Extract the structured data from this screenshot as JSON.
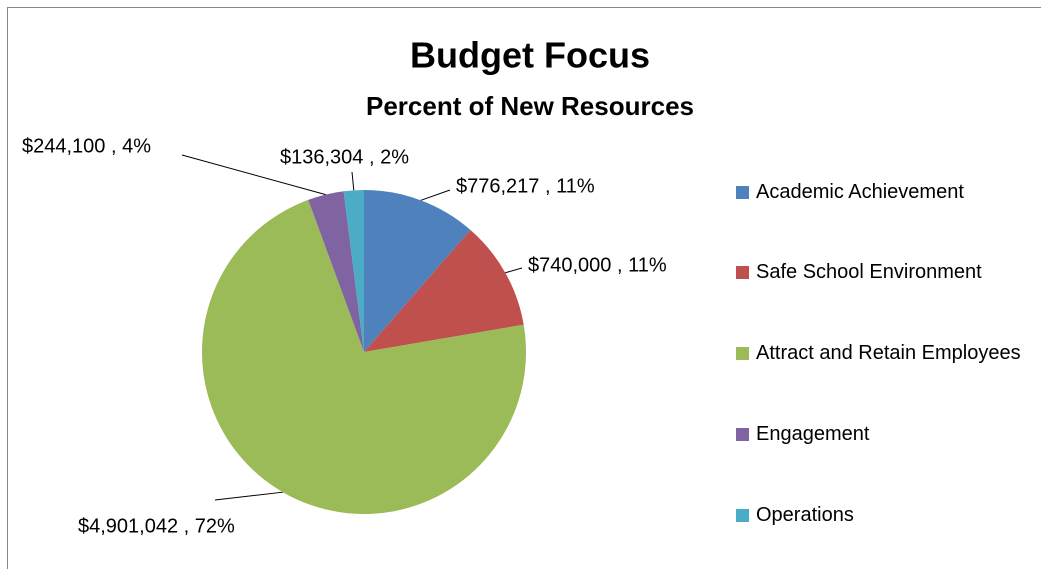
{
  "chart_data": {
    "type": "pie",
    "title": "Budget Focus",
    "subtitle": "Percent of New Resources",
    "categories": [
      "Academic Achievement",
      "Safe School Environment",
      "Attract and Retain Employees",
      "Engagement",
      "Operations"
    ],
    "values": [
      776217,
      740000,
      4901042,
      244100,
      136304
    ],
    "value_labels": [
      "$776,217 , 11%",
      "$740,000 , 11%",
      "$4,901,042 , 72%",
      "$244,100 , 4%",
      "$136,304 , 2%"
    ],
    "colors": [
      "#4f81bd",
      "#c0504d",
      "#9bbb59",
      "#8064a2",
      "#4bacc6"
    ],
    "legend": "right"
  }
}
